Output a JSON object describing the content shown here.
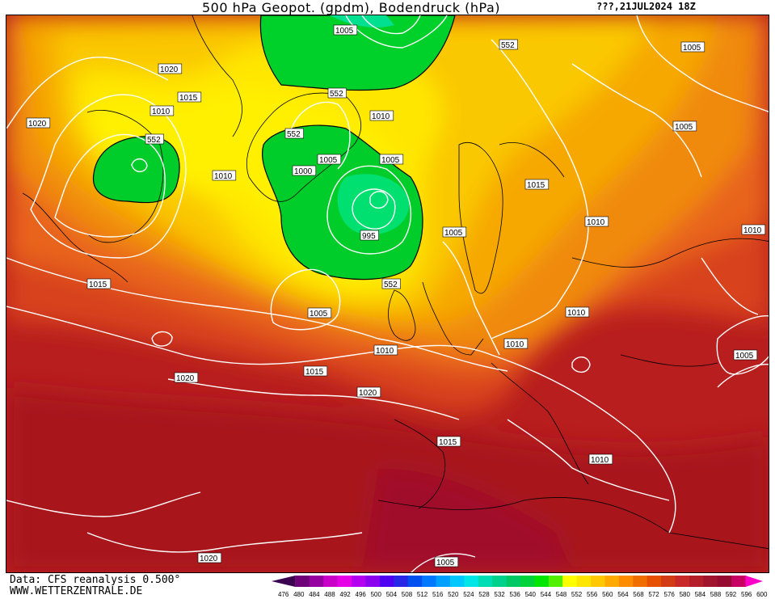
{
  "header": {
    "title": "500 hPa Geopot. (gpdm), Bodendruck (hPa)",
    "run_label": "???,21JUL2024 18Z"
  },
  "footer": {
    "data_source": "Data: CFS reanalysis 0.500°",
    "website": "WWW.WETTERZENTRALE.DE"
  },
  "legend": {
    "geopotential_levels": [
      "476",
      "480",
      "484",
      "488",
      "492",
      "496",
      "500",
      "504",
      "508",
      "512",
      "516",
      "520",
      "524",
      "528",
      "532",
      "536",
      "540",
      "544",
      "548",
      "552",
      "556",
      "560",
      "564",
      "568",
      "572",
      "576",
      "580",
      "584",
      "588",
      "592",
      "596",
      "600"
    ],
    "colors": [
      "#3c0050",
      "#6e0078",
      "#9600a0",
      "#c800c8",
      "#e600e6",
      "#b400f0",
      "#8c00f0",
      "#5000f0",
      "#2828e6",
      "#0050f0",
      "#0078ff",
      "#00a0ff",
      "#00c8ff",
      "#00e6e6",
      "#00dcb4",
      "#00d28c",
      "#00c864",
      "#00d23c",
      "#00e600",
      "#50f000",
      "#ffff00",
      "#ffe600",
      "#ffc800",
      "#ffaa00",
      "#ff8c00",
      "#f06e00",
      "#e65000",
      "#d23c14",
      "#c82828",
      "#b41e28",
      "#a0142d",
      "#960a32",
      "#c80064",
      "#ff00c8"
    ]
  },
  "isobar_labels": [
    {
      "text": "1005"
    },
    {
      "text": "552"
    },
    {
      "text": "1020"
    },
    {
      "text": "1015"
    },
    {
      "text": "1010"
    },
    {
      "text": "1020"
    },
    {
      "text": "552"
    },
    {
      "text": "552"
    },
    {
      "text": "1010"
    },
    {
      "text": "1005"
    },
    {
      "text": "1000"
    },
    {
      "text": "1005"
    },
    {
      "text": "1010"
    },
    {
      "text": "995"
    },
    {
      "text": "1005"
    },
    {
      "text": "1015"
    },
    {
      "text": "552"
    },
    {
      "text": "1015"
    },
    {
      "text": "1005"
    },
    {
      "text": "1010"
    },
    {
      "text": "1015"
    },
    {
      "text": "1020"
    },
    {
      "text": "1020"
    },
    {
      "text": "1010"
    },
    {
      "text": "1005"
    },
    {
      "text": "1005"
    },
    {
      "text": "1010"
    },
    {
      "text": "1010"
    },
    {
      "text": "1010"
    },
    {
      "text": "1005"
    },
    {
      "text": "1015"
    },
    {
      "text": "1010"
    },
    {
      "text": "1020"
    },
    {
      "text": "1005"
    },
    {
      "text": "552"
    }
  ]
}
